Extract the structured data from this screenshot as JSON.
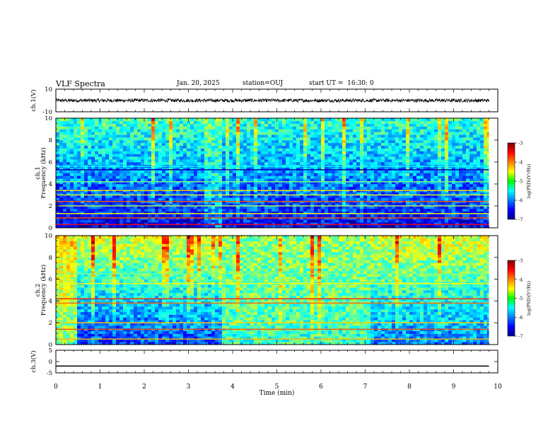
{
  "header": {
    "title": "VLF Spectra",
    "date": "Jan. 20, 2025",
    "station": "station=OUJ",
    "start_ut": "start UT =  16:30: 0"
  },
  "chart_data": [
    {
      "type": "line",
      "panel": "ch1-waveform",
      "ylabel": "ch.1(V)",
      "ylim": [
        -10,
        10
      ],
      "yticks": [
        10,
        -10
      ],
      "baseline": 0,
      "amplitude_range": [
        -1.5,
        1.5
      ],
      "x_extent": [
        0,
        9.8
      ]
    },
    {
      "type": "heatmap",
      "panel": "ch1-spectrogram",
      "ylabel": "ch.1\nFrequency (kHz)",
      "ylim": [
        0,
        10
      ],
      "yticks": [
        0,
        2,
        4,
        6,
        8,
        10
      ],
      "xlim": [
        0,
        10
      ],
      "x_extent": [
        0,
        9.8
      ],
      "colorbar": {
        "label": "log(PSD)(V²/Hz)",
        "range": [
          -7,
          -3
        ],
        "ticks": [
          -3,
          -4,
          -5,
          -6,
          -7
        ]
      },
      "segments": [
        {
          "x": [
            0,
            3.3
          ],
          "low_freq_level": -6.6,
          "high_freq_level": -5.2
        },
        {
          "x": [
            3.3,
            3.7
          ],
          "low_freq_level": -6.0,
          "high_freq_level": -5.0
        },
        {
          "x": [
            3.7,
            9.8
          ],
          "low_freq_level": -6.5,
          "high_freq_level": -5.3
        }
      ],
      "bands": [
        {
          "freq": 0.3,
          "level": -3.5
        },
        {
          "freq": 0.9,
          "level": -3.8
        },
        {
          "freq": 1.3,
          "level": -4.5
        },
        {
          "freq": 2.0,
          "level": -4.8
        },
        {
          "freq": 2.4,
          "level": -3.9
        },
        {
          "freq": 3.0,
          "level": -4.6
        },
        {
          "freq": 3.4,
          "level": -4.4
        },
        {
          "freq": 4.2,
          "level": -5.0
        },
        {
          "freq": 5.3,
          "level": -6.8
        },
        {
          "freq": 5.6,
          "level": -5.5
        }
      ]
    },
    {
      "type": "heatmap",
      "panel": "ch2-spectrogram",
      "ylabel": "ch.2\nFrequency (kHz)",
      "ylim": [
        0,
        10
      ],
      "yticks": [
        0,
        2,
        4,
        6,
        8,
        10
      ],
      "xlim": [
        0,
        10
      ],
      "x_extent": [
        0,
        9.8
      ],
      "colorbar": {
        "label": "log(PSD)(V²/Hz)",
        "range": [
          -7,
          -3
        ],
        "ticks": [
          -3,
          -4,
          -5,
          -6,
          -7
        ]
      },
      "segments": [
        {
          "x": [
            0,
            0.45
          ],
          "low_freq_level": -5.0,
          "high_freq_level": -4.4
        },
        {
          "x": [
            0.45,
            3.7
          ],
          "low_freq_level": -6.3,
          "high_freq_level": -4.6
        },
        {
          "x": [
            3.7,
            7.05
          ],
          "low_freq_level": -5.3,
          "high_freq_level": -4.9
        },
        {
          "x": [
            7.05,
            9.8
          ],
          "low_freq_level": -6.0,
          "high_freq_level": -4.6
        }
      ],
      "bands": [
        {
          "freq": 0.5,
          "level": -4.2
        },
        {
          "freq": 1.4,
          "level": -3.8
        },
        {
          "freq": 2.0,
          "level": -4.3
        },
        {
          "freq": 3.8,
          "level": -3.9
        },
        {
          "freq": 4.2,
          "level": -3.6
        },
        {
          "freq": 5.6,
          "level": -4.5
        },
        {
          "freq": 6.5,
          "level": -5.0
        }
      ]
    },
    {
      "type": "line",
      "panel": "ch3-waveform",
      "ylabel": "ch.3(V)",
      "ylim": [
        -5,
        5
      ],
      "yticks": [
        5,
        0,
        -5
      ],
      "x": [
        0,
        9.8
      ],
      "y": [
        -2,
        -2
      ]
    }
  ],
  "x_axis": {
    "label": "Time (min)",
    "xlim": [
      0,
      10
    ],
    "ticks": [
      "0",
      "1",
      "2",
      "3",
      "4",
      "5",
      "6",
      "7",
      "8",
      "9",
      "10"
    ]
  }
}
